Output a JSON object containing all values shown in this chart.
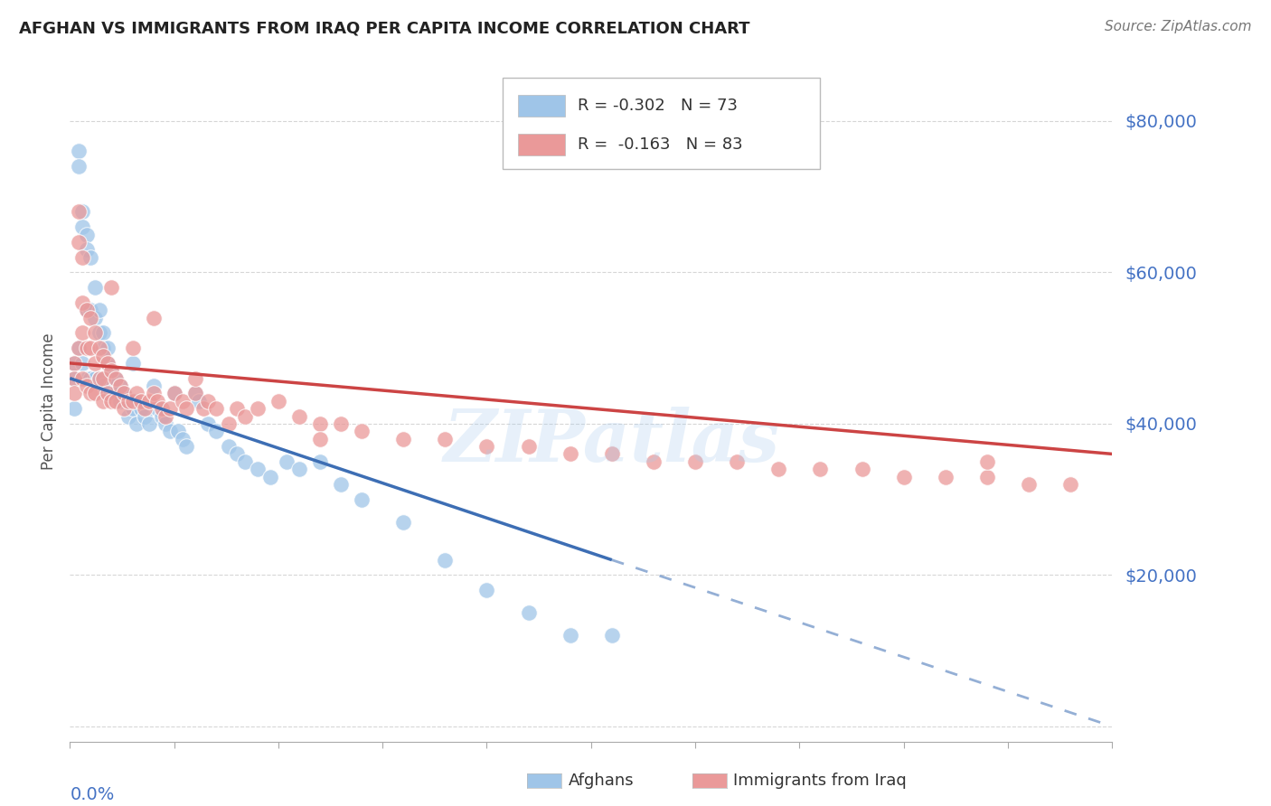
{
  "title": "AFGHAN VS IMMIGRANTS FROM IRAQ PER CAPITA INCOME CORRELATION CHART",
  "source": "Source: ZipAtlas.com",
  "ylabel": "Per Capita Income",
  "ytick_values": [
    0,
    20000,
    40000,
    60000,
    80000
  ],
  "ytick_labels": [
    "",
    "$20,000",
    "$40,000",
    "$60,000",
    "$80,000"
  ],
  "xlim": [
    0.0,
    0.25
  ],
  "ylim": [
    -2000,
    88000
  ],
  "color_afghan": "#9fc5e8",
  "color_iraq": "#ea9999",
  "color_trendline_afghan": "#3d6eb4",
  "color_trendline_iraq": "#cc4444",
  "color_axis_labels": "#4472c4",
  "background_color": "#ffffff",
  "grid_color": "#cccccc",
  "watermark": "ZIPatlas",
  "trendline_afghan_x0": 0.0,
  "trendline_afghan_y0": 46000,
  "trendline_afghan_x1": 0.13,
  "trendline_afghan_y1": 22000,
  "trendline_afghan_xdash_x1": 0.25,
  "trendline_afghan_xdash_y1": 0,
  "trendline_iraq_x0": 0.0,
  "trendline_iraq_y0": 48000,
  "trendline_iraq_x1": 0.25,
  "trendline_iraq_y1": 36000,
  "afghans_x": [
    0.001,
    0.001,
    0.002,
    0.002,
    0.002,
    0.003,
    0.003,
    0.003,
    0.004,
    0.004,
    0.004,
    0.004,
    0.005,
    0.005,
    0.005,
    0.006,
    0.006,
    0.006,
    0.007,
    0.007,
    0.007,
    0.008,
    0.008,
    0.008,
    0.009,
    0.009,
    0.009,
    0.01,
    0.01,
    0.011,
    0.011,
    0.012,
    0.012,
    0.013,
    0.014,
    0.014,
    0.015,
    0.015,
    0.016,
    0.016,
    0.017,
    0.018,
    0.019,
    0.02,
    0.021,
    0.022,
    0.023,
    0.024,
    0.025,
    0.026,
    0.027,
    0.028,
    0.03,
    0.031,
    0.033,
    0.035,
    0.038,
    0.04,
    0.042,
    0.045,
    0.048,
    0.052,
    0.055,
    0.06,
    0.065,
    0.07,
    0.08,
    0.09,
    0.1,
    0.11,
    0.12,
    0.13,
    0.001
  ],
  "afghans_y": [
    48000,
    46000,
    76000,
    74000,
    50000,
    68000,
    66000,
    48000,
    65000,
    63000,
    55000,
    46000,
    62000,
    55000,
    46000,
    58000,
    54000,
    46000,
    55000,
    52000,
    46000,
    52000,
    50000,
    45000,
    50000,
    48000,
    44000,
    47000,
    45000,
    46000,
    44000,
    45000,
    43000,
    44000,
    43000,
    41000,
    48000,
    42000,
    43000,
    40000,
    42000,
    41000,
    40000,
    45000,
    42000,
    41000,
    40000,
    39000,
    44000,
    39000,
    38000,
    37000,
    44000,
    43000,
    40000,
    39000,
    37000,
    36000,
    35000,
    34000,
    33000,
    35000,
    34000,
    35000,
    32000,
    30000,
    27000,
    22000,
    18000,
    15000,
    12000,
    12000,
    42000
  ],
  "iraq_x": [
    0.001,
    0.001,
    0.001,
    0.002,
    0.002,
    0.002,
    0.003,
    0.003,
    0.003,
    0.004,
    0.004,
    0.004,
    0.005,
    0.005,
    0.005,
    0.006,
    0.006,
    0.006,
    0.007,
    0.007,
    0.008,
    0.008,
    0.008,
    0.009,
    0.009,
    0.01,
    0.01,
    0.011,
    0.011,
    0.012,
    0.013,
    0.013,
    0.014,
    0.015,
    0.015,
    0.016,
    0.017,
    0.018,
    0.019,
    0.02,
    0.021,
    0.022,
    0.023,
    0.024,
    0.025,
    0.027,
    0.028,
    0.03,
    0.032,
    0.033,
    0.035,
    0.038,
    0.04,
    0.042,
    0.045,
    0.05,
    0.055,
    0.06,
    0.065,
    0.07,
    0.08,
    0.09,
    0.1,
    0.11,
    0.12,
    0.13,
    0.14,
    0.15,
    0.16,
    0.17,
    0.18,
    0.19,
    0.2,
    0.21,
    0.22,
    0.23,
    0.24,
    0.003,
    0.01,
    0.02,
    0.03,
    0.06,
    0.22
  ],
  "iraq_y": [
    48000,
    46000,
    44000,
    68000,
    64000,
    50000,
    56000,
    52000,
    46000,
    55000,
    50000,
    45000,
    54000,
    50000,
    44000,
    52000,
    48000,
    44000,
    50000,
    46000,
    49000,
    46000,
    43000,
    48000,
    44000,
    47000,
    43000,
    46000,
    43000,
    45000,
    44000,
    42000,
    43000,
    50000,
    43000,
    44000,
    43000,
    42000,
    43000,
    44000,
    43000,
    42000,
    41000,
    42000,
    44000,
    43000,
    42000,
    44000,
    42000,
    43000,
    42000,
    40000,
    42000,
    41000,
    42000,
    43000,
    41000,
    40000,
    40000,
    39000,
    38000,
    38000,
    37000,
    37000,
    36000,
    36000,
    35000,
    35000,
    35000,
    34000,
    34000,
    34000,
    33000,
    33000,
    33000,
    32000,
    32000,
    62000,
    58000,
    54000,
    46000,
    38000,
    35000
  ]
}
